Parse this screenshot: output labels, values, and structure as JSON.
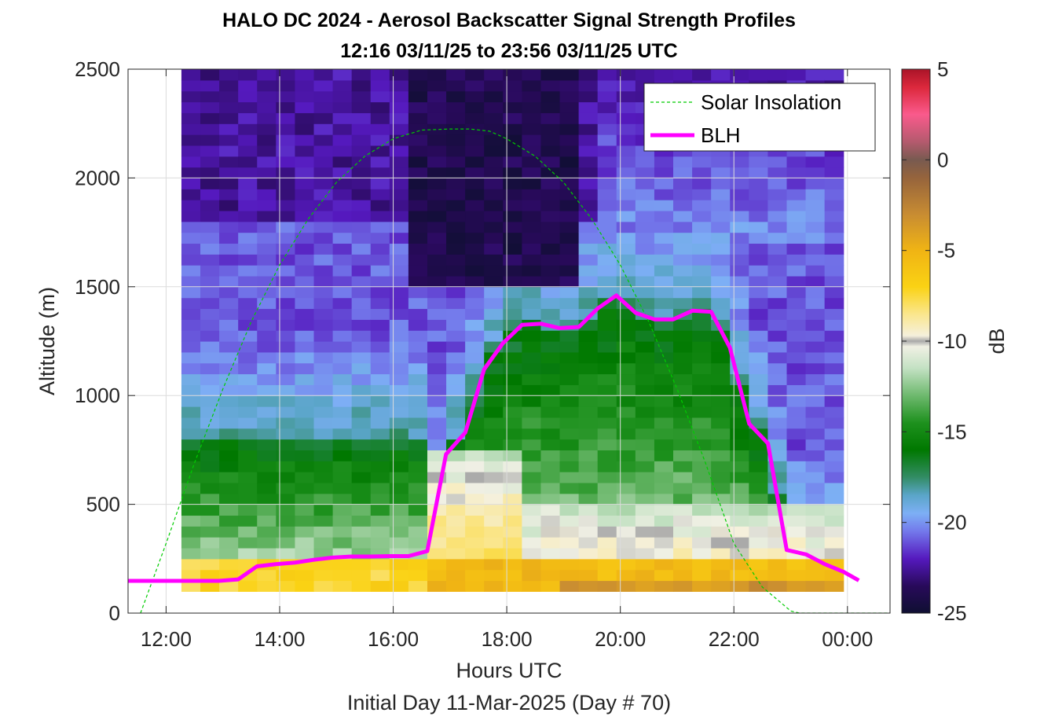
{
  "chart_data": {
    "type": "heatmap",
    "title": "HALO DC 2024 - Aerosol Backscatter Signal Strength Profiles",
    "subtitle": "12:16 03/11/25 to 23:56 03/11/25  UTC",
    "xlabel": "Hours UTC",
    "footer": "Initial Day 11-Mar-2025 (Day # 70)",
    "ylabel": "Altitude (m)",
    "colorbar_label": "dB",
    "xlim": [
      11.33,
      24.75
    ],
    "ylim": [
      0,
      2500
    ],
    "x_ticks": [
      12,
      14,
      16,
      18,
      20,
      22,
      24
    ],
    "x_tick_labels": [
      "12:00",
      "14:00",
      "16:00",
      "18:00",
      "20:00",
      "22:00",
      "00:00"
    ],
    "y_ticks": [
      0,
      500,
      1000,
      1500,
      2000,
      2500
    ],
    "y_tick_labels": [
      "0",
      "500",
      "1000",
      "1500",
      "2000",
      "2500"
    ],
    "clim": [
      -25,
      5
    ],
    "colorbar_ticks": [
      5,
      0,
      -5,
      -10,
      -15,
      -20,
      -25
    ],
    "colorbar_tick_labels": [
      "5",
      "0",
      "-5",
      "-10",
      "-15",
      "-20",
      "-25"
    ],
    "grid": true,
    "legend_position": "top-right",
    "heatmap": {
      "x_start": 12.27,
      "x_end": 23.93,
      "y_start": 100,
      "y_end": 2500,
      "columns": 35,
      "rows": 48,
      "approx_layers_dB": [
        {
          "alt_range": [
            100,
            250
          ],
          "dB": -7,
          "note": "near-surface yellow/orange layer"
        },
        {
          "alt_range": [
            250,
            800
          ],
          "dB": -14,
          "note": "green mixed layer before 16:30"
        },
        {
          "alt_range": [
            250,
            750
          ],
          "dB": -8,
          "note": "yellow/white layer 16:30-18:00"
        },
        {
          "alt_range": [
            800,
            1400
          ],
          "dB": -16,
          "note": "green boundary layer 18:00-23:00"
        },
        {
          "alt_range": [
            1400,
            1800
          ],
          "dB": -20,
          "note": "blue/purple"
        },
        {
          "alt_range": [
            1800,
            2500
          ],
          "dB": -23,
          "note": "dark purple free troposphere"
        }
      ]
    },
    "series": [
      {
        "name": "Solar Insolation",
        "style": "dashed",
        "color": "#00cc00",
        "x": [
          11.55,
          12.0,
          12.5,
          13.0,
          13.5,
          14.0,
          14.5,
          15.0,
          15.5,
          16.0,
          16.5,
          17.0,
          17.35,
          17.7,
          18.0,
          18.5,
          19.0,
          19.5,
          20.0,
          20.5,
          21.0,
          21.5,
          22.0,
          22.5,
          23.0,
          23.15,
          24.0,
          24.75
        ],
        "y": [
          0,
          320,
          690,
          1030,
          1340,
          1600,
          1810,
          1980,
          2100,
          2180,
          2220,
          2225,
          2225,
          2215,
          2180,
          2100,
          1980,
          1810,
          1600,
          1340,
          1030,
          690,
          320,
          120,
          10,
          0,
          0,
          0
        ]
      },
      {
        "name": "BLH",
        "style": "solid",
        "color": "#ff00ff",
        "x": [
          11.33,
          12.27,
          12.6,
          12.93,
          13.27,
          13.6,
          13.93,
          14.27,
          14.6,
          14.93,
          15.27,
          15.6,
          15.93,
          16.27,
          16.6,
          16.93,
          17.27,
          17.6,
          17.93,
          18.27,
          18.6,
          18.93,
          19.27,
          19.6,
          19.93,
          20.27,
          20.6,
          20.93,
          21.27,
          21.6,
          21.93,
          22.27,
          22.6,
          22.93,
          23.27,
          23.6,
          23.93,
          24.2
        ],
        "y": [
          148,
          148,
          148,
          148,
          155,
          215,
          225,
          232,
          245,
          255,
          260,
          260,
          262,
          262,
          285,
          730,
          830,
          1120,
          1240,
          1325,
          1330,
          1310,
          1315,
          1400,
          1460,
          1380,
          1350,
          1350,
          1390,
          1385,
          1220,
          870,
          780,
          290,
          270,
          225,
          190,
          150
        ]
      }
    ]
  }
}
